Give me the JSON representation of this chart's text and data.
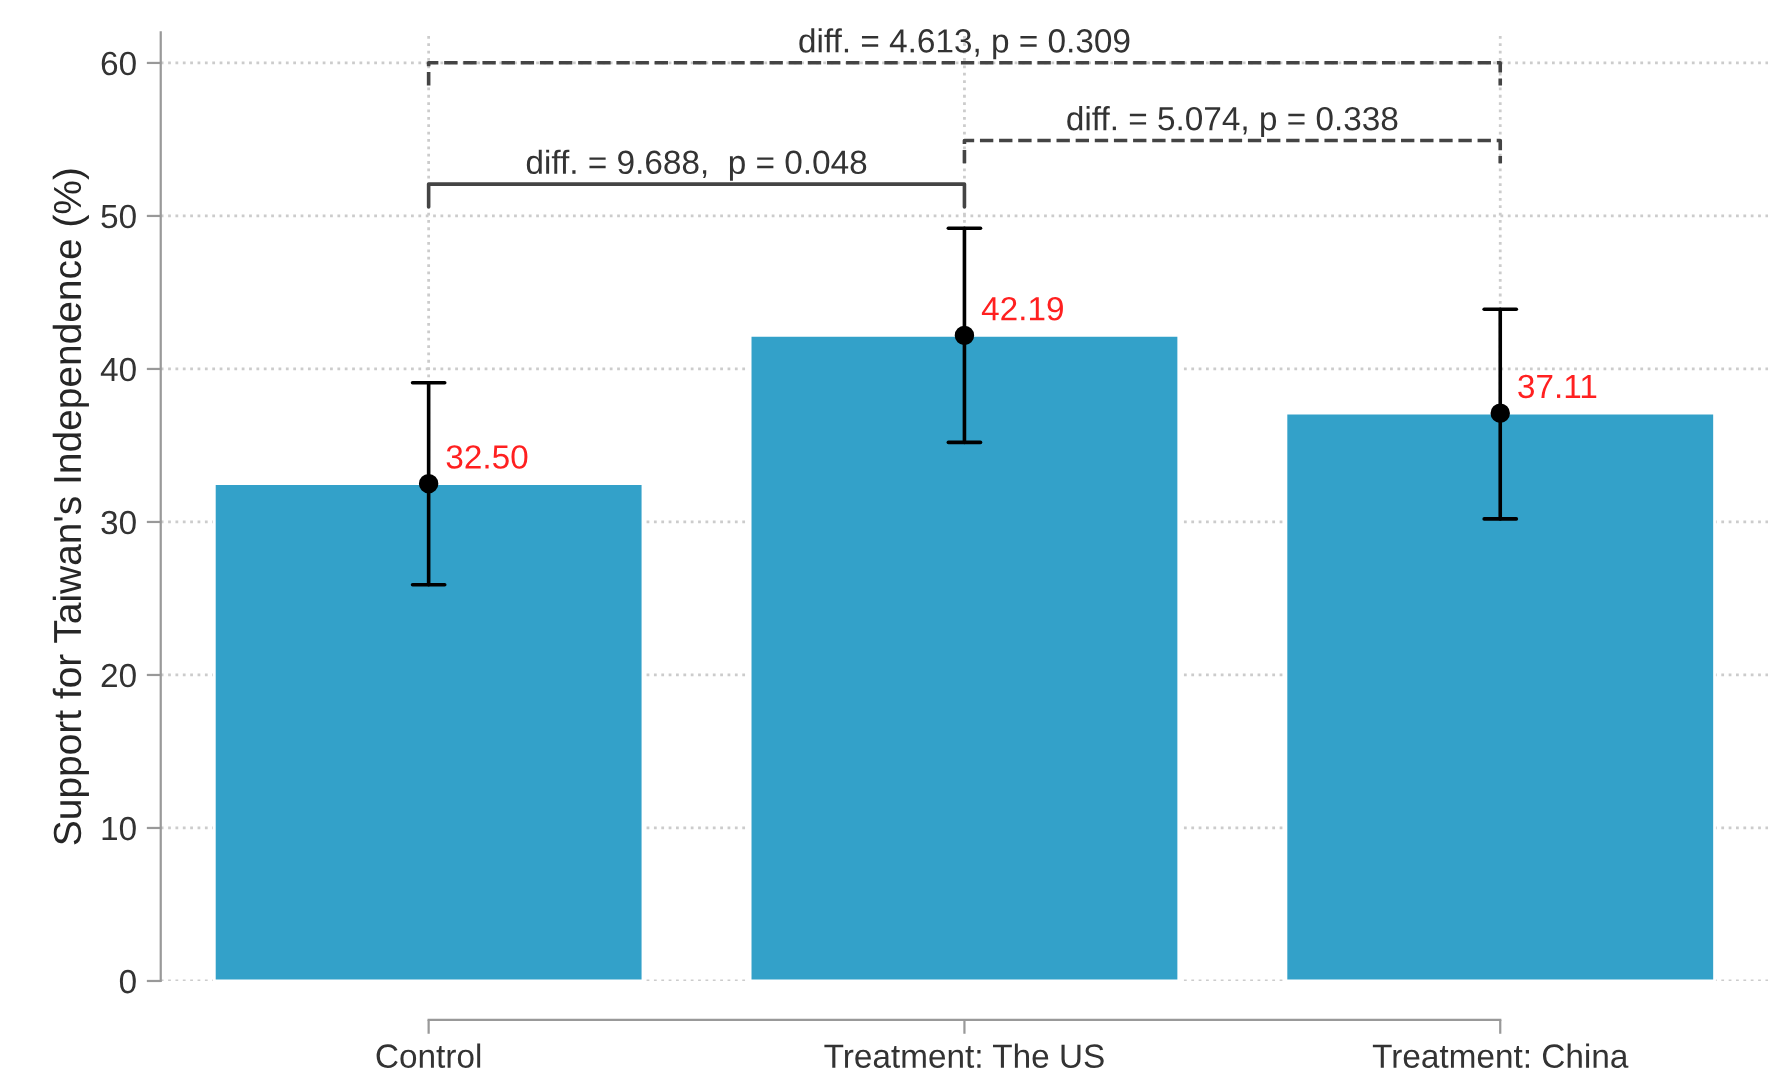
{
  "chart_data": {
    "type": "bar",
    "ylabel": "Support for Taiwan's Independence (%)",
    "categories": [
      "Control",
      "Treatment: The US",
      "Treatment: China"
    ],
    "series": [
      {
        "color": "#33a1c9",
        "values": [
          32.5,
          42.19,
          37.11
        ],
        "value_labels": [
          "32.50",
          "42.19",
          "37.11"
        ]
      },
      {
        "type": "scatter",
        "color": "#000000",
        "marker": "circle",
        "x": [
          "Control",
          "Treatment: The US",
          "Treatment: China"
        ],
        "values": [
          32.5,
          42.19,
          37.11
        ],
        "errors": [
          [
            25.9,
            39.1
          ],
          [
            35.2,
            49.2
          ],
          [
            30.2,
            43.9
          ]
        ]
      }
    ],
    "ylim": [
      0,
      62
    ],
    "yticks": [
      0,
      10,
      20,
      30,
      40,
      50,
      60
    ],
    "grid": true,
    "annotations": [
      "diff. = 9.688,  p = 0.048",
      "diff. = 5.074, p = 0.338",
      "diff. = 4.613, p = 0.309"
    ]
  }
}
